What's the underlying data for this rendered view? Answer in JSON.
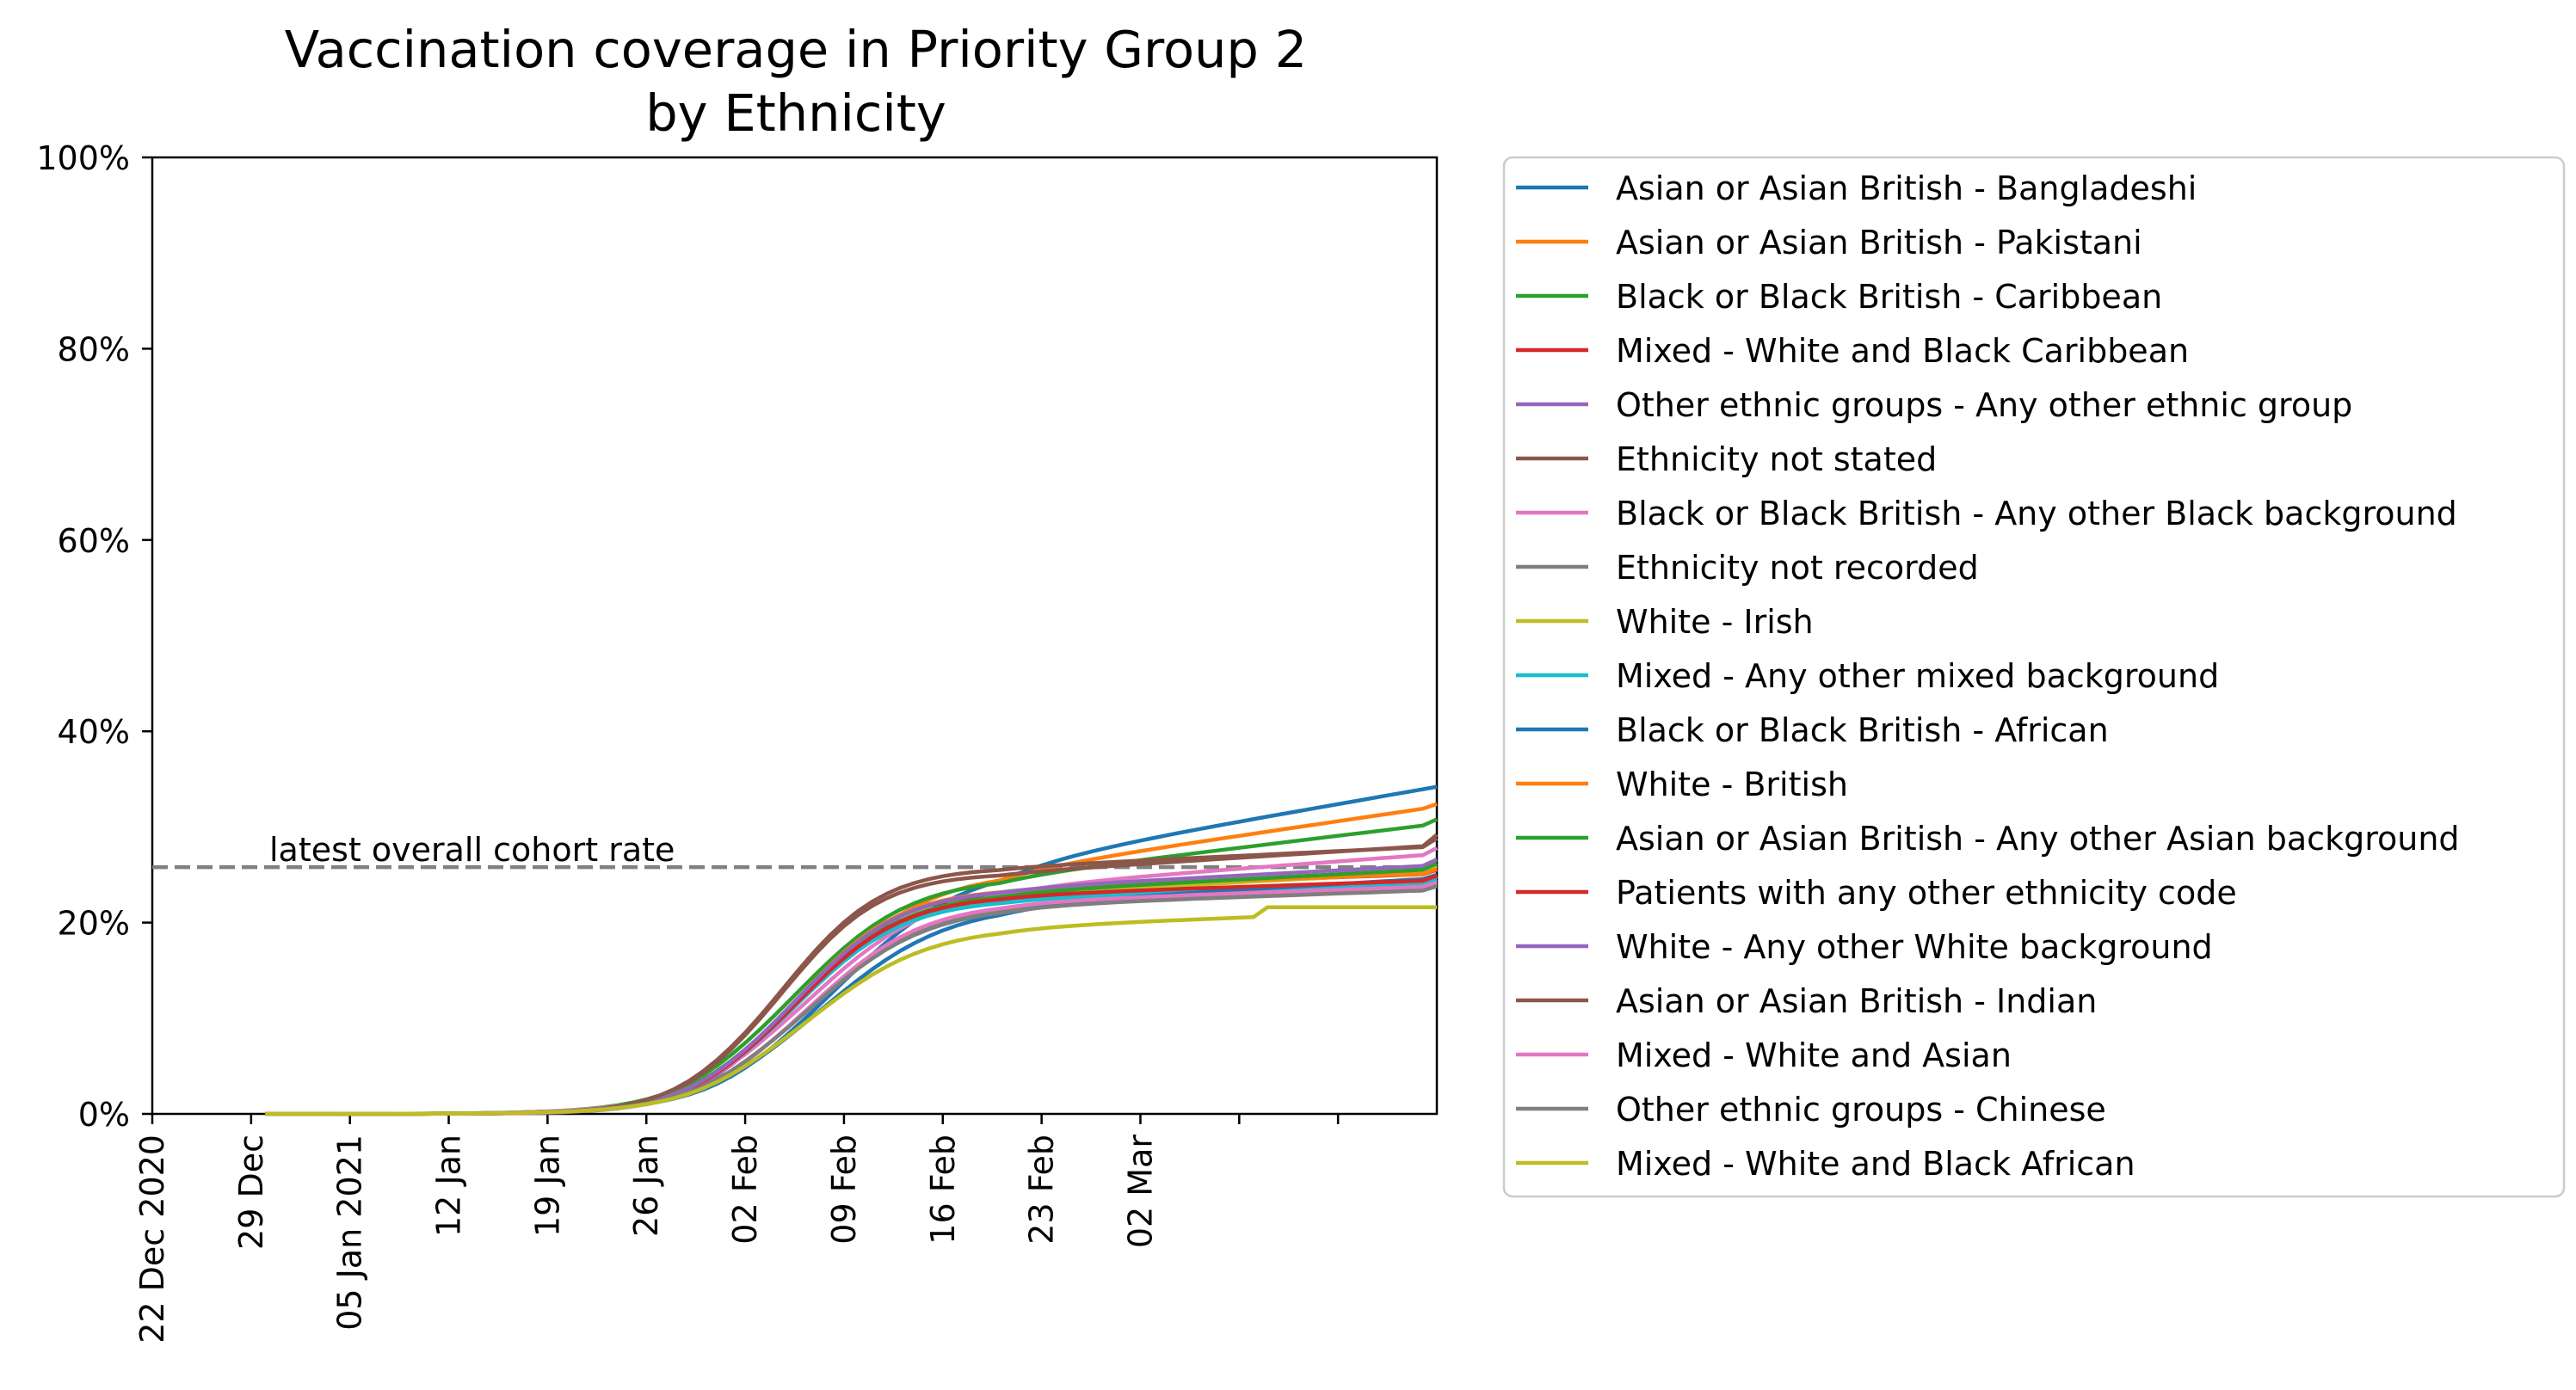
{
  "chart_data": {
    "type": "line",
    "title": "Vaccination coverage in Priority Group 2\nby Ethnicity",
    "xlabel": "",
    "ylabel": "",
    "ylim": [
      0,
      100
    ],
    "y_ticks": [
      "0%",
      "20%",
      "40%",
      "60%",
      "80%",
      "100%"
    ],
    "x_ticks": [
      "22 Dec 2020",
      "29 Dec",
      "05 Jan 2021",
      "12 Jan",
      "19 Jan",
      "26 Jan",
      "02 Feb",
      "09 Feb",
      "16 Feb",
      "23 Feb",
      "02 Mar",
      "",
      ""
    ],
    "reference_line": {
      "label": "latest overall cohort rate",
      "value": 25.8,
      "style": "dashed",
      "color": "#808080"
    },
    "legend": "outside-right",
    "grid": false,
    "series": [
      {
        "name": "Asian or Asian British - Bangladeshi",
        "color": "#1f77b4",
        "final": 34.2,
        "steep": 38,
        "plateau": 1.0,
        "lag": 3,
        "end_gain": 8
      },
      {
        "name": "Asian or Asian British - Pakistani",
        "color": "#ff7f0e",
        "final": 32.4,
        "steep": 45,
        "plateau": 0.9,
        "lag": 1,
        "end_gain": 7
      },
      {
        "name": "Black or Black British - Caribbean",
        "color": "#2ca02c",
        "final": 30.8,
        "steep": 50,
        "plateau": 0.8,
        "lag": 0,
        "end_gain": 6
      },
      {
        "name": "Mixed - White and Black Caribbean",
        "color": "#d62728",
        "final": 25.5,
        "steep": 62,
        "plateau": 0.5,
        "lag": 0,
        "end_gain": 2
      },
      {
        "name": "Other ethnic groups - Any other ethnic group",
        "color": "#9467bd",
        "final": 24.8,
        "steep": 66,
        "plateau": 0.4,
        "lag": 0,
        "end_gain": 2
      },
      {
        "name": "Ethnicity not stated",
        "color": "#8c564b",
        "final": 29.2,
        "steep": 72,
        "plateau": 0.3,
        "lag": -1,
        "end_gain": 4
      },
      {
        "name": "Black or Black British - Any other Black background",
        "color": "#e377c2",
        "final": 27.8,
        "steep": 42,
        "plateau": 0.6,
        "lag": 1,
        "end_gain": 4
      },
      {
        "name": "Ethnicity not recorded",
        "color": "#7f7f7f",
        "final": 24.0,
        "steep": 50,
        "plateau": 0.5,
        "lag": 1,
        "end_gain": 2
      },
      {
        "name": "White - Irish",
        "color": "#bcbd22",
        "final": 25.9,
        "steep": 55,
        "plateau": 0.5,
        "lag": 0,
        "end_gain": 3
      },
      {
        "name": "Mixed - Any other mixed background",
        "color": "#17becf",
        "final": 24.5,
        "steep": 58,
        "plateau": 0.5,
        "lag": 0,
        "end_gain": 2
      },
      {
        "name": "Black or Black British - African",
        "color": "#1f77b4",
        "final": 25.0,
        "steep": 40,
        "plateau": 0.7,
        "lag": 2,
        "end_gain": 3
      },
      {
        "name": "White - British",
        "color": "#ff7f0e",
        "final": 25.6,
        "steep": 64,
        "plateau": 0.4,
        "lag": 0,
        "end_gain": 2
      },
      {
        "name": "Asian or Asian British - Any other Asian background",
        "color": "#2ca02c",
        "final": 26.2,
        "steep": 56,
        "plateau": 0.5,
        "lag": 0,
        "end_gain": 3
      },
      {
        "name": "Patients with any other ethnicity code",
        "color": "#d62728",
        "final": 24.9,
        "steep": 60,
        "plateau": 0.4,
        "lag": 0,
        "end_gain": 2
      },
      {
        "name": "White - Any other White background",
        "color": "#9467bd",
        "final": 26.6,
        "steep": 60,
        "plateau": 0.5,
        "lag": 0,
        "end_gain": 3
      },
      {
        "name": "Asian or Asian British - Indian",
        "color": "#8c564b",
        "final": 28.8,
        "steep": 70,
        "plateau": 0.3,
        "lag": -1,
        "end_gain": 3
      },
      {
        "name": "Mixed - White and Asian",
        "color": "#e377c2",
        "final": 24.2,
        "steep": 52,
        "plateau": 0.5,
        "lag": 1,
        "end_gain": 2
      },
      {
        "name": "Other ethnic groups - Chinese",
        "color": "#7f7f7f",
        "final": 23.8,
        "steep": 48,
        "plateau": 0.5,
        "lag": 1,
        "end_gain": 2
      },
      {
        "name": "Mixed - White and Black African",
        "color": "#bcbd22",
        "final": 21.6,
        "steep": 46,
        "plateau": 0.6,
        "lag": 1,
        "end_gain": 2,
        "stepped": true
      }
    ]
  }
}
